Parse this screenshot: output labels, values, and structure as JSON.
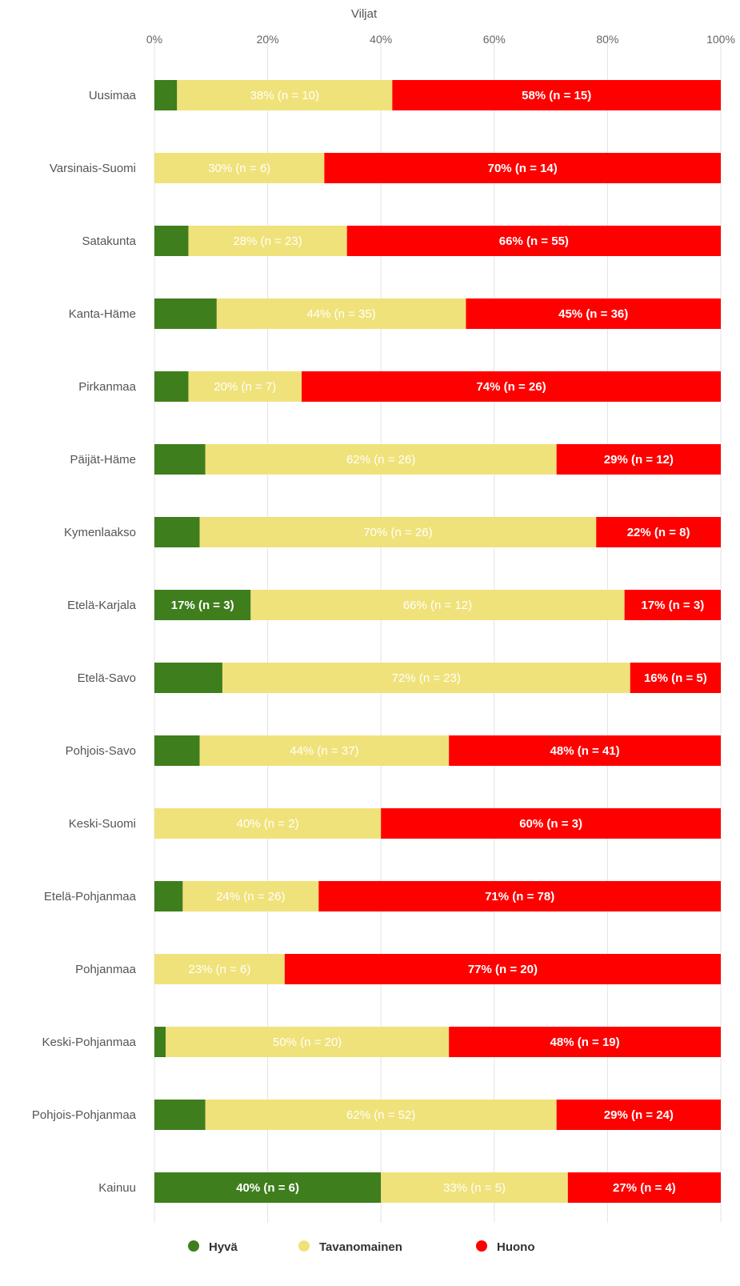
{
  "chart_data": {
    "type": "bar",
    "orientation": "horizontal",
    "stacked": true,
    "title": "Viljat",
    "xlim": [
      0,
      100
    ],
    "x_ticks": [
      "0%",
      "20%",
      "40%",
      "60%",
      "80%",
      "100%"
    ],
    "grid": true,
    "legend_placement": "bottom",
    "categories": [
      "Uusimaa",
      "Varsinais-Suomi",
      "Satakunta",
      "Kanta-Häme",
      "Pirkanmaa",
      "Päijät-Häme",
      "Kymenlaakso",
      "Etelä-Karjala",
      "Etelä-Savo",
      "Pohjois-Savo",
      "Keski-Suomi",
      "Etelä-Pohjanmaa",
      "Pohjanmaa",
      "Keski-Pohjanmaa",
      "Pohjois-Pohjanmaa",
      "Kainuu"
    ],
    "series": [
      {
        "name": "Hyvä",
        "color": "#3f7e1c",
        "label_color": "#ffffff",
        "values": [
          4,
          0,
          6,
          11,
          6,
          9,
          8,
          17,
          12,
          8,
          0,
          5,
          0,
          2,
          9,
          40
        ],
        "labels": [
          "",
          "",
          "",
          "",
          "",
          "",
          "",
          "17% (n = 3)",
          "",
          "",
          "",
          "",
          "",
          "",
          "",
          "40% (n = 6)"
        ]
      },
      {
        "name": "Tavanomainen",
        "color": "#f0e27a",
        "label_color": "#ffffff",
        "values": [
          38,
          30,
          28,
          44,
          20,
          62,
          70,
          66,
          72,
          44,
          40,
          24,
          23,
          50,
          62,
          33
        ],
        "labels": [
          "38% (n = 10)",
          "30% (n = 6)",
          "28% (n = 23)",
          "44% (n = 35)",
          "20% (n = 7)",
          "62% (n = 26)",
          "70% (n = 26)",
          "66% (n = 12)",
          "72% (n = 23)",
          "44% (n = 37)",
          "40% (n = 2)",
          "24% (n = 26)",
          "23% (n = 6)",
          "50% (n = 20)",
          "62% (n = 52)",
          "33% (n = 5)"
        ]
      },
      {
        "name": "Huono",
        "color": "#ff0000",
        "label_color": "#ffffff",
        "values": [
          58,
          70,
          66,
          45,
          74,
          29,
          22,
          17,
          16,
          48,
          60,
          71,
          77,
          48,
          29,
          27
        ],
        "labels": [
          "58% (n = 15)",
          "70% (n = 14)",
          "66% (n = 55)",
          "45% (n = 36)",
          "74% (n = 26)",
          "29% (n = 12)",
          "22% (n = 8)",
          "17% (n = 3)",
          "16% (n = 5)",
          "48% (n = 41)",
          "60% (n = 3)",
          "71% (n = 78)",
          "77% (n = 20)",
          "48% (n = 19)",
          "29% (n = 24)",
          "27% (n = 4)"
        ]
      }
    ]
  }
}
